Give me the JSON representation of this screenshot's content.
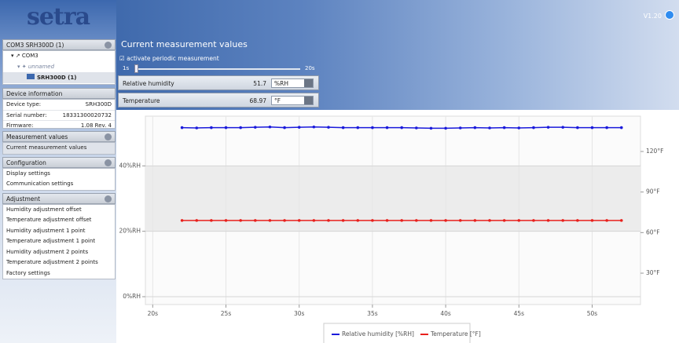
{
  "app": {
    "logo": "setra",
    "version": "V1.20"
  },
  "sidebar": {
    "device_panel": {
      "title": "COM3 SRH300D (1)",
      "port": "COM3",
      "group": "unnamed",
      "device": "SRH300D (1)"
    },
    "device_info": {
      "title": "Device information",
      "rows": [
        [
          "Device type:",
          "SRH300D"
        ],
        [
          "Serial number:",
          "18331300020732"
        ],
        [
          "Firmware:",
          "1.08 Rev. 4"
        ]
      ]
    },
    "sections": [
      {
        "title": "Measurement values",
        "items": [
          "Current measurement values"
        ]
      },
      {
        "title": "Configuration",
        "items": [
          "Display settings",
          "Communication settings"
        ]
      },
      {
        "title": "Adjustment",
        "items": [
          "Humidity adjustment offset",
          "Temperature adjustment offset",
          "Humidity adjustment 1 point",
          "Temperature adjustment 1 point",
          "Humidity adjustment 2 points",
          "Temperature adjustment 2 points",
          "Factory settings"
        ]
      }
    ]
  },
  "main": {
    "title": "Current measurement values",
    "checkbox": "activate periodic measurement",
    "slider": {
      "min": "1s",
      "max": "20s"
    },
    "readings": [
      {
        "label": "Relative humidity",
        "value": "51.7",
        "unit": "%RH"
      },
      {
        "label": "Temperature",
        "value": "68.97",
        "unit": "°F"
      }
    ]
  },
  "chart_data": {
    "type": "line",
    "x": [
      22,
      23,
      24,
      25,
      26,
      27,
      28,
      29,
      30,
      31,
      32,
      33,
      34,
      35,
      36,
      37,
      38,
      39,
      40,
      41,
      42,
      43,
      44,
      45,
      46,
      47,
      48,
      49,
      50,
      51,
      52
    ],
    "series": [
      {
        "name": "Relative humidity [%RH]",
        "color": "#1a1adb",
        "axis": "y",
        "values": [
          51.7,
          51.6,
          51.7,
          51.7,
          51.7,
          51.8,
          51.9,
          51.7,
          51.8,
          51.9,
          51.8,
          51.7,
          51.7,
          51.7,
          51.7,
          51.7,
          51.6,
          51.5,
          51.5,
          51.6,
          51.7,
          51.6,
          51.7,
          51.6,
          51.7,
          51.8,
          51.8,
          51.7,
          51.7,
          51.7,
          51.7
        ]
      },
      {
        "name": "Temperature [°F]",
        "color": "#e8201c",
        "axis": "y2",
        "values": [
          68.97,
          68.97,
          68.97,
          68.97,
          68.97,
          68.97,
          68.97,
          68.97,
          68.97,
          68.97,
          68.97,
          68.97,
          68.97,
          68.97,
          68.97,
          68.97,
          68.97,
          68.97,
          68.97,
          68.97,
          68.97,
          68.97,
          68.97,
          68.97,
          68.97,
          68.97,
          68.97,
          68.97,
          68.97,
          68.97,
          68.97
        ]
      }
    ],
    "xlim": [
      19.5,
      53.3
    ],
    "xticks": [
      {
        "value": 20,
        "label": "20s"
      },
      {
        "value": 25,
        "label": "25s"
      },
      {
        "value": 30,
        "label": "30s"
      },
      {
        "value": 35,
        "label": "35s"
      },
      {
        "value": 40,
        "label": "40s"
      },
      {
        "value": 45,
        "label": "45s"
      },
      {
        "value": 50,
        "label": "50s"
      }
    ],
    "ylim": [
      -2.4,
      55.2
    ],
    "yticks": [
      {
        "value": 0,
        "label": "0%RH"
      },
      {
        "value": 20,
        "label": "20%RH"
      },
      {
        "value": 40,
        "label": "40%RH"
      }
    ],
    "y2lim": [
      6.8,
      146.1
    ],
    "y2ticks": [
      {
        "value": 30,
        "label": "30°F"
      },
      {
        "value": 60,
        "label": "60°F"
      },
      {
        "value": 90,
        "label": "90°F"
      },
      {
        "value": 120,
        "label": "120°F"
      }
    ],
    "grid": true
  }
}
